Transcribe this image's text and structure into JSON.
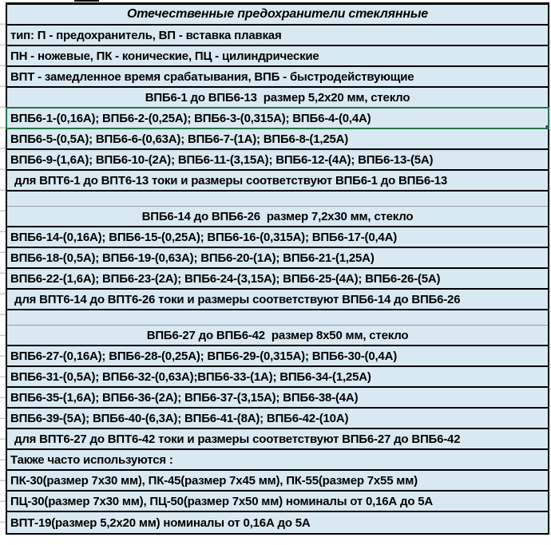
{
  "spreadsheet": {
    "selection": {
      "selected_row_index": 5,
      "has_fill_handle": true
    },
    "colors": {
      "cell_fill": "#d9e9f1",
      "grid_border": "#000000",
      "selection_green": "#26734a",
      "gridline_gray": "#9b9b9b",
      "page_background": "#ffffff",
      "text": "#000000"
    },
    "rows": [
      {
        "text": "Отечественные предохранители стеклянные",
        "style": "title"
      },
      {
        "text": "тип: П - предохранитель, ВП - вставка плавкая",
        "style": "info"
      },
      {
        "text": "ПН - ножевые, ПК - конические, ПЦ - цилиндрические",
        "style": "info"
      },
      {
        "text": "ВПТ - замедленное время срабатывания, ВПБ - быстродействующие",
        "style": "info"
      },
      {
        "text": "ВПБ6-1 до ВПБ6-13  размер 5,2x20 мм, стекло",
        "style": "section-header"
      },
      {
        "text": "ВПБ6-1-(0,16А); ВПБ6-2-(0,25А); ВПБ6-3-(0,315А); ВПБ6-4-(0,4А)",
        "style": "data-selected"
      },
      {
        "text": "ВПБ6-5-(0,5А); ВПБ6-6-(0,63А); ВПБ6-7-(1А); ВПБ6-8-(1,25А)",
        "style": "data"
      },
      {
        "text": "ВПБ6-9-(1,6А); ВПБ6-10-(2А); ВПБ6-11-(3,15А); ВПБ6-12-(4А); ВПБ6-13-(5А)",
        "style": "data"
      },
      {
        "text": "для ВПТ6-1 до ВПТ6-13 токи и размеры соответствуют ВПБ6-1 до ВПБ6-13",
        "style": "note"
      },
      {
        "text": "",
        "style": "empty"
      },
      {
        "text": "ВПБ6-14 до ВПБ6-26  размер 7,2x30 мм, стекло",
        "style": "section-header"
      },
      {
        "text": "ВПБ6-14-(0,16А); ВПБ6-15-(0,25А); ВПБ6-16-(0,315А); ВПБ6-17-(0,4А)",
        "style": "data"
      },
      {
        "text": "ВПБ6-18-(0,5А); ВПБ6-19-(0,63А); ВПБ6-20-(1А); ВПБ6-21-(1,25А)",
        "style": "data"
      },
      {
        "text": "ВПБ6-22-(1,6А); ВПБ6-23-(2А); ВПБ6-24-(3,15А); ВПБ6-25-(4А); ВПБ6-26-(5А)",
        "style": "data"
      },
      {
        "text": "для ВПТ6-14 до ВПТ6-26 токи и размеры соответствуют ВПБ6-14 до ВПБ6-26",
        "style": "note"
      },
      {
        "text": "",
        "style": "empty"
      },
      {
        "text": "ВПБ6-27 до ВПБ6-42  размер 8x50 мм, стекло",
        "style": "section-header"
      },
      {
        "text": "ВПБ6-27-(0,16А); ВПБ6-28-(0,25А); ВПБ6-29-(0,315А); ВПБ6-30-(0,4А)",
        "style": "data"
      },
      {
        "text": "ВПБ6-31-(0,5А); ВПБ6-32-(0,63А);ВПБ6-33-(1А); ВПБ6-34-(1,25А)",
        "style": "data"
      },
      {
        "text": "ВПБ6-35-(1,6А); ВПБ6-36-(2А); ВПБ6-37-(3,15А); ВПБ6-38-(4А)",
        "style": "data"
      },
      {
        "text": "ВПБ6-39-(5А); ВПБ6-40-(6,3А); ВПБ6-41-(8А); ВПБ6-42-(10А)",
        "style": "data"
      },
      {
        "text": "для ВПТ6-27 до ВПТ6-42 токи и размеры соответствуют ВПБ6-27 до ВПБ6-42",
        "style": "note"
      },
      {
        "text": "Также часто используются :",
        "style": "data"
      },
      {
        "text": "ПК-30(размер 7x30 мм), ПК-45(размер 7x45 мм), ПК-55(размер 7x55 мм)",
        "style": "data"
      },
      {
        "text": "ПЦ-30(размер 7x30 мм), ПЦ-50(размер 7x50 мм) номиналы от 0,16А до 5А",
        "style": "data"
      },
      {
        "text": "ВПТ-19(размер 5,2x20 мм) номиналы от 0,16А до 5А",
        "style": "data"
      }
    ]
  }
}
